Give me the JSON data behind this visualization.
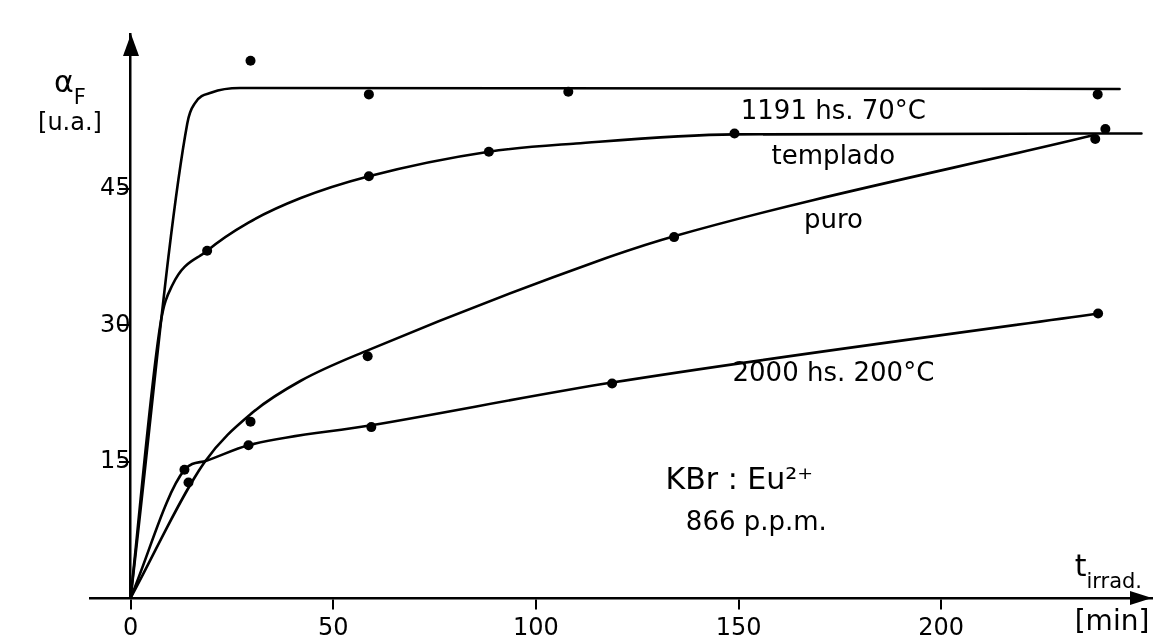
{
  "chart_data": {
    "type": "line",
    "xlabel": "t$_{irrad.}$",
    "ylabel": "α$_{F}$ [u.a.]",
    "xlim": [
      -10,
      252
    ],
    "ylim": [
      0,
      62
    ],
    "xticks": [
      0,
      50,
      100,
      150,
      200
    ],
    "yticks": [
      15,
      30,
      45
    ],
    "grid": false,
    "legend": false,
    "marker": "none",
    "line_style": "solid",
    "annotations": [
      "[min]",
      "KBr : Eu²⁺",
      "866 p.p.m."
    ],
    "series": [
      {
        "name": "1191 hs. 70°C",
        "color": "#000000",
        "x": [
          0,
          14,
          16,
          20,
          27,
          244
        ],
        "values": [
          0,
          52.2,
          54.5,
          55.6,
          56.1,
          56.0
        ]
      },
      {
        "name": "templado",
        "color": "#000000",
        "x": [
          0,
          7.4,
          10.3,
          18.9,
          29.1,
          42,
          58.8,
          88.4,
          109.9,
          149,
          249.4
        ],
        "values": [
          0,
          30.2,
          34.4,
          38.2,
          41.3,
          44,
          46.4,
          49.1,
          50,
          51,
          51.1
        ]
      },
      {
        "name": "puro",
        "color": "#000000",
        "x": [
          0,
          18.2,
          30.1,
          42,
          58.8,
          114.8,
          134.1,
          237.5
        ],
        "values": [
          0,
          14.9,
          20.4,
          23.9,
          27.3,
          37,
          39.8,
          50.9
        ]
      },
      {
        "name": "2000 hs. 200°C",
        "color": "#000000",
        "x": [
          0,
          13.3,
          18.7,
          29.1,
          59.4,
          118.8,
          238.7
        ],
        "values": [
          0,
          14.1,
          15.1,
          16.8,
          19,
          23.7,
          31.3
        ]
      },
      {
        "type": "scatter",
        "color": "#000000",
        "marker": "circle",
        "x": [
          29.6,
          58.8,
          108,
          238.6
        ],
        "values": [
          59.1,
          55.4,
          55.7,
          55.4
        ]
      },
      {
        "type": "scatter",
        "color": "#000000",
        "marker": "circle",
        "x": [
          18.9,
          58.8,
          88.4,
          149,
          240.5
        ],
        "values": [
          38.2,
          46.4,
          49.1,
          51.1,
          51.6
        ]
      },
      {
        "type": "scatter",
        "color": "#000000",
        "marker": "circle",
        "x": [
          14.3,
          29.6,
          58.5,
          134.1,
          238
        ],
        "values": [
          12.7,
          19.4,
          26.6,
          39.7,
          50.5
        ]
      },
      {
        "type": "scatter",
        "color": "#000000",
        "marker": "circle",
        "x": [
          13.3,
          29.1,
          59.4,
          118.8,
          238.7
        ],
        "values": [
          14.1,
          16.8,
          18.8,
          23.6,
          31.3
        ]
      }
    ]
  }
}
